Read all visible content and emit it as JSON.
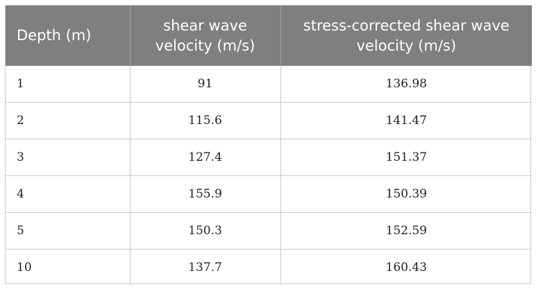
{
  "table": {
    "headers": [
      "Depth (m)",
      "shear wave velocity (m/s)",
      "stress-corrected shear wave velocity (m/s)"
    ],
    "rows": [
      [
        "1",
        "91",
        "136.98"
      ],
      [
        "2",
        "115.6",
        "141.47"
      ],
      [
        "3",
        "127.4",
        "151.37"
      ],
      [
        "4",
        "155.9",
        "150.39"
      ],
      [
        "5",
        "150.3",
        "152.59"
      ],
      [
        "10",
        "137.7",
        "160.43"
      ]
    ]
  },
  "colors": {
    "header_background": "#7f7f7f",
    "header_text": "#ffffff",
    "grid_line": "#c9c9c9",
    "body_text": "#1f1f1f"
  }
}
